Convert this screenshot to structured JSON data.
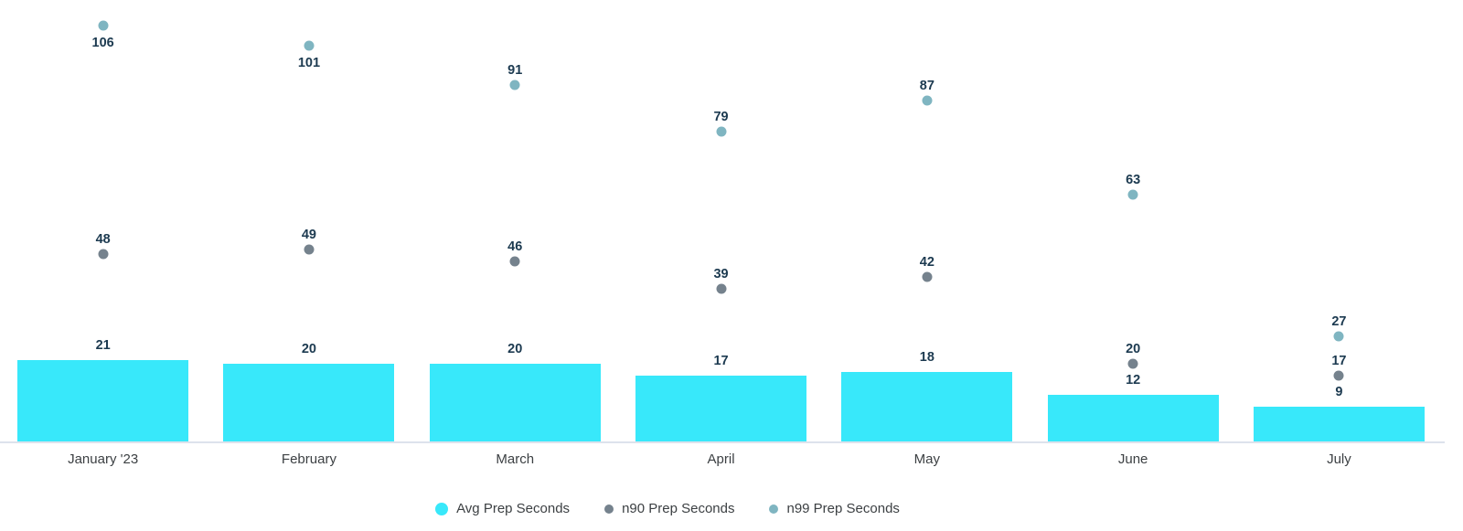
{
  "chart_data": {
    "type": "bar",
    "subtype": "combo-bar-with-points",
    "title": "",
    "xlabel": "",
    "ylabel": "",
    "ylim": [
      0,
      112
    ],
    "grid": false,
    "legend_position": "bottom",
    "value_labels": true,
    "categories": [
      "January '23",
      "February",
      "March",
      "April",
      "May",
      "June",
      "July"
    ],
    "series": [
      {
        "name": "Avg Prep Seconds",
        "type": "bar",
        "color": "#38e8fa",
        "values": [
          21,
          20,
          20,
          17,
          18,
          12,
          9
        ]
      },
      {
        "name": "n90 Prep Seconds",
        "type": "scatter",
        "color": "#75828d",
        "values": [
          48,
          49,
          46,
          39,
          42,
          20,
          17
        ]
      },
      {
        "name": "n99 Prep Seconds",
        "type": "scatter",
        "color": "#7fb5c1",
        "values": [
          106,
          101,
          91,
          79,
          87,
          63,
          27
        ],
        "label_below": [
          true,
          true,
          false,
          false,
          false,
          false,
          false
        ]
      }
    ],
    "colors": {
      "value_label": "#1c3a50",
      "category_label": "#3c4043",
      "axis_line": "#dde2ec",
      "legend_text": "#3c4043",
      "background": "#ffffff"
    }
  }
}
